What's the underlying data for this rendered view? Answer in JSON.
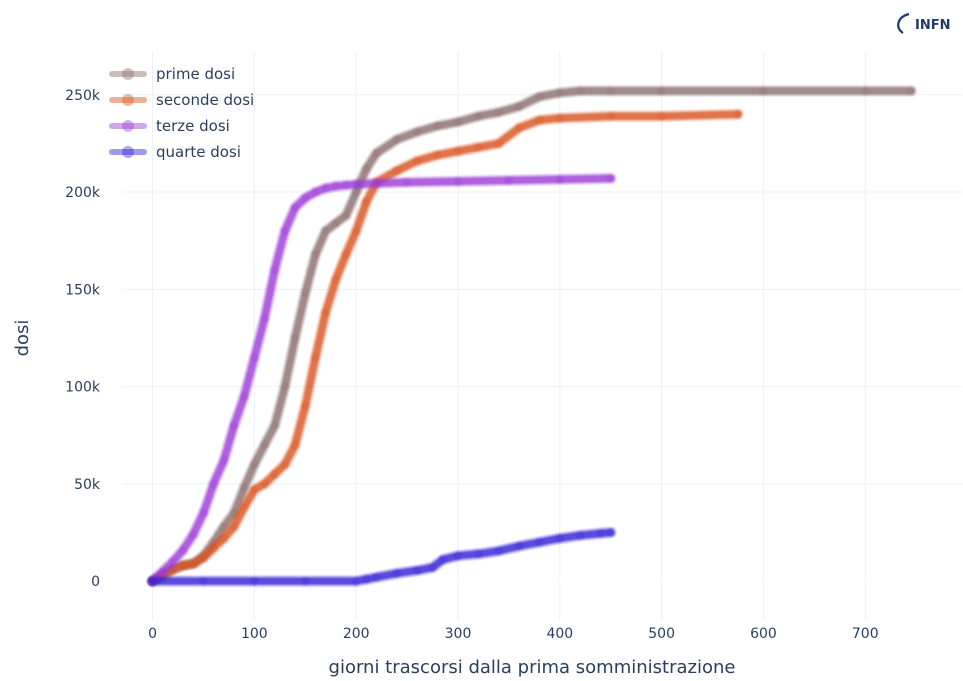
{
  "logo": {
    "text": "INFN",
    "color": "#1f3a6e"
  },
  "chart_data": {
    "type": "line",
    "xlabel": "giorni trascorsi dalla prima somministrazione",
    "ylabel": "dosi",
    "xlim": [
      -30,
      795
    ],
    "ylim": [
      -20000,
      272000
    ],
    "xticks": [
      0,
      100,
      200,
      300,
      400,
      500,
      600,
      700
    ],
    "yticks": [
      0,
      50000,
      100000,
      150000,
      200000,
      250000
    ],
    "ytick_labels": [
      "0",
      "50k",
      "100k",
      "150k",
      "200k",
      "250k"
    ],
    "grid": true,
    "legend_position": "top-left",
    "series": [
      {
        "name": "prime dosi",
        "color": "#8c6f6f",
        "x": [
          0,
          10,
          20,
          30,
          40,
          50,
          60,
          70,
          80,
          90,
          100,
          110,
          120,
          130,
          140,
          150,
          160,
          170,
          180,
          190,
          200,
          210,
          220,
          240,
          260,
          280,
          300,
          320,
          340,
          360,
          380,
          400,
          420,
          450,
          500,
          600,
          700,
          745
        ],
        "y": [
          0,
          3000,
          6000,
          8000,
          9000,
          13000,
          20000,
          28000,
          35000,
          48000,
          60000,
          70000,
          80000,
          100000,
          125000,
          148000,
          168000,
          180000,
          184000,
          188000,
          200000,
          212000,
          220000,
          227000,
          231000,
          234000,
          236000,
          239000,
          241000,
          244000,
          249000,
          251000,
          252000,
          252000,
          252000,
          252000,
          252000,
          252000
        ]
      },
      {
        "name": "seconde dosi",
        "color": "#d9541e",
        "x": [
          0,
          10,
          20,
          30,
          40,
          50,
          60,
          70,
          80,
          90,
          100,
          110,
          120,
          130,
          140,
          150,
          160,
          170,
          180,
          190,
          200,
          210,
          220,
          240,
          260,
          280,
          300,
          320,
          340,
          360,
          380,
          400,
          450,
          500,
          575
        ],
        "y": [
          0,
          3000,
          6000,
          8000,
          9000,
          12000,
          17000,
          22000,
          28000,
          38000,
          47000,
          50000,
          55000,
          60000,
          70000,
          90000,
          115000,
          138000,
          155000,
          168000,
          180000,
          195000,
          205000,
          211000,
          216000,
          219000,
          221000,
          223000,
          225000,
          233000,
          237000,
          238000,
          239000,
          239000,
          240000
        ]
      },
      {
        "name": "terze dosi",
        "color": "#9b3ad6",
        "x": [
          0,
          10,
          20,
          30,
          40,
          50,
          60,
          70,
          80,
          90,
          100,
          110,
          120,
          130,
          140,
          150,
          160,
          170,
          180,
          190,
          200,
          220,
          250,
          300,
          350,
          400,
          450
        ],
        "y": [
          0,
          5000,
          10000,
          16000,
          24000,
          35000,
          50000,
          62000,
          80000,
          95000,
          115000,
          135000,
          160000,
          180000,
          192000,
          197000,
          200000,
          202000,
          203000,
          203500,
          204000,
          204500,
          205000,
          205500,
          206000,
          206500,
          207000
        ]
      },
      {
        "name": "quarte dosi",
        "color": "#3322d6",
        "x": [
          0,
          50,
          100,
          150,
          200,
          210,
          220,
          240,
          260,
          275,
          285,
          300,
          320,
          340,
          360,
          380,
          400,
          420,
          440,
          450
        ],
        "y": [
          0,
          0,
          0,
          0,
          0,
          1000,
          2000,
          4000,
          5500,
          7000,
          11000,
          13000,
          14000,
          15500,
          18000,
          20000,
          22000,
          23500,
          24500,
          25000
        ]
      }
    ]
  }
}
